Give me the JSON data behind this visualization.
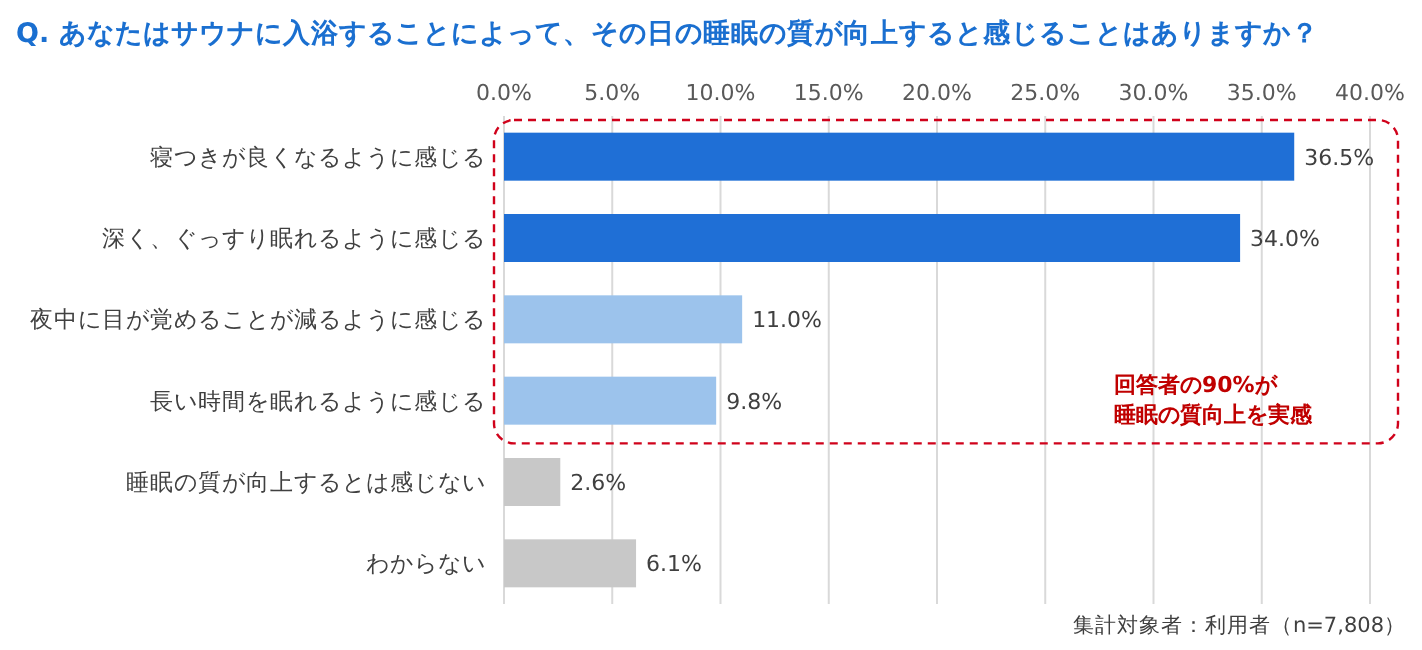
{
  "chart_data": {
    "type": "bar",
    "orientation": "horizontal",
    "title": "Q. あなたはサウナに入浴することによって、その日の睡眠の質が向上すると感じることはありますか？",
    "categories": [
      "寝つきが良くなるように感じる",
      "深く、ぐっすり眠れるように感じる",
      "夜中に目が覚めることが減るように感じる",
      "長い時間を眠れるように感じる",
      "睡眠の質が向上するとは感じない",
      "わからない"
    ],
    "values": [
      36.5,
      34.0,
      11.0,
      9.8,
      2.6,
      6.1
    ],
    "colors": [
      "#1f6fd6",
      "#1f6fd6",
      "#9cc3ec",
      "#9cc3ec",
      "#c8c8c8",
      "#c8c8c8"
    ],
    "value_labels": [
      "36.5%",
      "34.0%",
      "11.0%",
      "9.8%",
      "2.6%",
      "6.1%"
    ],
    "xlim": [
      0,
      40
    ],
    "xticks": [
      {
        "value": 0,
        "label": "0.0%"
      },
      {
        "value": 5,
        "label": "5.0%"
      },
      {
        "value": 10,
        "label": "10.0%"
      },
      {
        "value": 15,
        "label": "15.0%"
      },
      {
        "value": 20,
        "label": "20.0%"
      },
      {
        "value": 25,
        "label": "25.0%"
      },
      {
        "value": 30,
        "label": "30.0%"
      },
      {
        "value": 35,
        "label": "35.0%"
      },
      {
        "value": 40,
        "label": "40.0%"
      }
    ],
    "grid": "x",
    "annotations": [
      "回答者の90%が",
      "睡眠の質向上を実感",
      "集計対象者：利用者（n=7,808）"
    ]
  }
}
